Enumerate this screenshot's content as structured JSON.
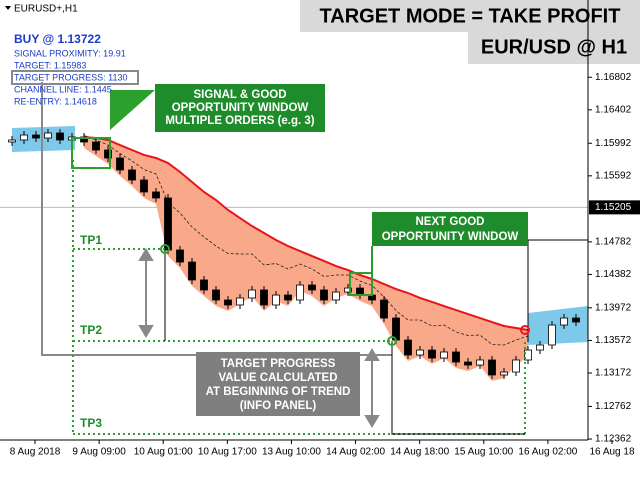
{
  "chart_data": {
    "type": "candlestick",
    "symbol_label": "EURUSD+,H1",
    "closes": [
      1.16032,
      1.16093,
      1.16056,
      1.16118,
      1.16032,
      1.16069,
      1.16007,
      1.15909,
      1.15811,
      1.15664,
      1.15541,
      1.15394,
      1.1532,
      1.14682,
      1.14534,
      1.14314,
      1.14191,
      1.14068,
      1.14007,
      1.14093,
      1.14191,
      1.14007,
      1.14129,
      1.14068,
      1.14252,
      1.14191,
      1.14068,
      1.14166,
      1.14215,
      1.14129,
      1.14068,
      1.13847,
      1.13577,
      1.13393,
      1.13454,
      1.13356,
      1.1343,
      1.13307,
      1.1327,
      1.13332,
      1.13148,
      1.13184,
      1.13332,
      1.13454,
      1.13516,
      1.13761,
      1.13847,
      1.13798
    ],
    "channel_upper": [
      null,
      null,
      null,
      null,
      null,
      null,
      1.16069,
      1.16056,
      1.16032,
      1.1597,
      1.15909,
      1.15848,
      1.15811,
      1.15749,
      1.15639,
      1.15516,
      1.15394,
      1.15295,
      1.15173,
      1.15074,
      1.14976,
      1.1489,
      1.14805,
      1.14731,
      1.14669,
      1.14608,
      1.14547,
      1.14485,
      1.14436,
      1.14375,
      1.14326,
      1.14264,
      1.14203,
      1.14154,
      1.14093,
      1.14044,
      1.13994,
      1.13945,
      1.13896,
      1.13847,
      1.13798,
      1.13749,
      1.13724,
      1.137,
      null,
      null,
      null,
      null
    ],
    "up_color": "#ffffff",
    "down_color": "#000000",
    "channel_color": "#e8141a",
    "fill_color": "#f9a98a",
    "ylim": [
      1.1235,
      1.1775
    ],
    "yticks": [
      1.16802,
      1.16402,
      1.15992,
      1.15592,
      1.14782,
      1.14382,
      1.13972,
      1.13572,
      1.13172,
      1.12762,
      1.12362
    ],
    "current_price": 1.15205,
    "x_labels": [
      "8 Aug 2018",
      "9 Aug 09:00",
      "10 Aug 01:00",
      "10 Aug 17:00",
      "13 Aug 10:00",
      "14 Aug 02:00",
      "14 Aug 18:00",
      "15 Aug 10:00",
      "16 Aug 02:00",
      "16 Aug 18"
    ]
  },
  "info_panel": {
    "title": "BUY @ 1.13722",
    "lines": [
      "SIGNAL PROXIMITY: 19.91",
      "TARGET: 1.15983",
      "TARGET PROGRESS: 1130",
      "CHANNEL LINE: 1.1445",
      "RE-ENTRY: 1.14618"
    ]
  },
  "headline": [
    "TARGET MODE = TAKE PROFIT",
    "EUR/USD @ H1"
  ],
  "annotations": {
    "signal_window": [
      "SIGNAL & GOOD",
      "OPPORTUNITY WINDOW",
      "MULTIPLE ORDERS (e.g. 3)"
    ],
    "next_window": [
      "NEXT GOOD",
      "OPPORTUNITY WINDOW"
    ],
    "target_progress": [
      "TARGET PROGRESS",
      "VALUE CALCULATED",
      "AT BEGINNING OF TREND",
      "(INFO PANEL)"
    ],
    "tp": [
      "TP1",
      "TP2",
      "TP3"
    ]
  }
}
